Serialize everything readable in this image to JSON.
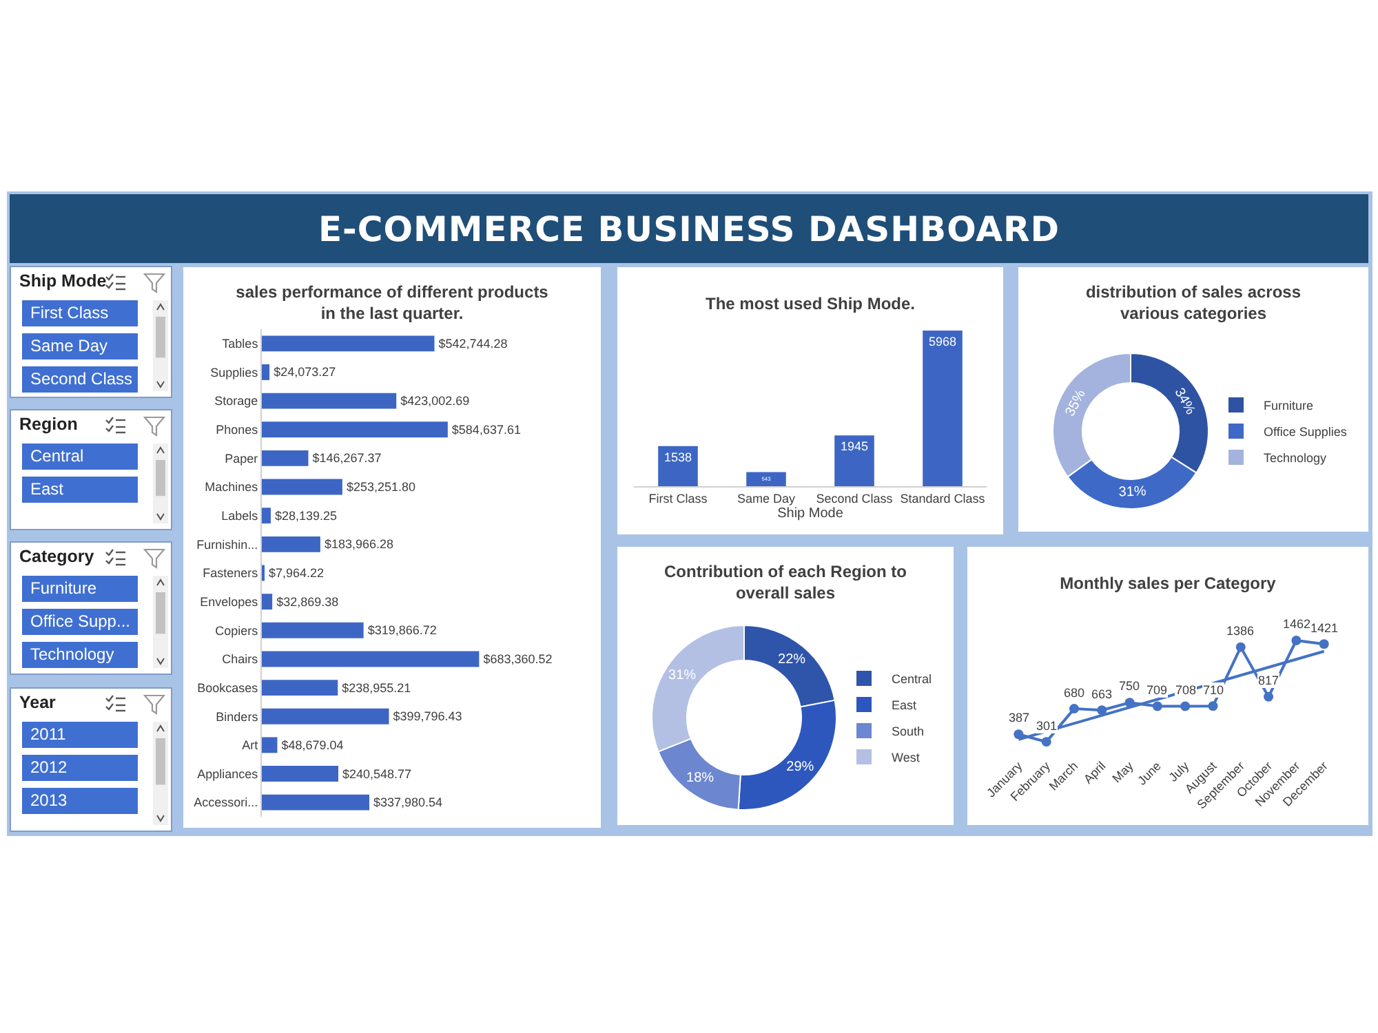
{
  "chart_data": [
    {
      "type": "other",
      "title": "E-COMMERCE BUSINESS DASHBOARD"
    },
    {
      "type": "other",
      "title": "Ship Mode",
      "categories": [
        "First Class",
        "Same Day",
        "Second Class"
      ]
    },
    {
      "type": "other",
      "title": "Region",
      "categories": [
        "Central",
        "East"
      ]
    },
    {
      "type": "other",
      "title": "Category",
      "categories": [
        "Furniture",
        "Office Supp...",
        "Technology"
      ]
    },
    {
      "type": "other",
      "title": "Year",
      "categories": [
        "2011",
        "2012",
        "2013"
      ]
    },
    {
      "type": "bar",
      "orientation": "horizontal",
      "title": "sales performance of different products in the last quarter.",
      "categories": [
        "Tables",
        "Supplies",
        "Storage",
        "Phones",
        "Paper",
        "Machines",
        "Labels",
        "Furnishin...",
        "Fasteners",
        "Envelopes",
        "Copiers",
        "Chairs",
        "Bookcases",
        "Binders",
        "Art",
        "Appliances",
        "Accessori..."
      ],
      "values": [
        542744.28,
        24073.27,
        423002.69,
        584637.61,
        146267.37,
        253251.8,
        28139.25,
        183966.28,
        7964.22,
        32869.38,
        319866.72,
        683360.52,
        238955.21,
        399796.43,
        48679.04,
        240548.77,
        337980.54
      ],
      "value_labels": [
        "$542,744.28",
        "$24,073.27",
        "$423,002.69",
        "$584,637.61",
        "$146,267.37",
        "$253,251.80",
        "$28,139.25",
        "$183,966.28",
        "$7,964.22",
        "$32,869.38",
        "$319,866.72",
        "$683,360.52",
        "$238,955.21",
        "$399,796.43",
        "$48,679.04",
        "$240,548.77",
        "$337,980.54"
      ],
      "color": "#3d66c4",
      "grid": false,
      "legend": false
    },
    {
      "type": "bar",
      "title": "The most used Ship Mode.",
      "xlabel": "Ship Mode",
      "categories": [
        "First Class",
        "Same Day",
        "Second Class",
        "Standard Class"
      ],
      "values": [
        1538,
        543,
        1945,
        5968
      ],
      "color": "#3d66c4",
      "data_labels": true,
      "grid": false,
      "legend": false
    },
    {
      "type": "donut",
      "title": "distribution of sales across various categories",
      "categories": [
        "Furniture",
        "Office Supplies",
        "Technology"
      ],
      "values": [
        34,
        31,
        35
      ],
      "value_labels": [
        "34%",
        "31%",
        "35%"
      ],
      "colors": [
        "#2f53a3",
        "#3e69c6",
        "#a3b3dd"
      ],
      "legend": "right"
    },
    {
      "type": "donut",
      "title": "Contribution of each Region to overall sales",
      "categories": [
        "Central",
        "East",
        "South",
        "West"
      ],
      "values": [
        22,
        29,
        18,
        31
      ],
      "value_labels": [
        "22%",
        "29%",
        "18%",
        "31%"
      ],
      "colors": [
        "#2f55aa",
        "#2d57bd",
        "#6c86cf",
        "#b3c0e4"
      ],
      "legend": "right"
    },
    {
      "type": "line",
      "title": "Monthly sales per Category",
      "categories": [
        "January",
        "February",
        "March",
        "April",
        "May",
        "June",
        "July",
        "August",
        "September",
        "October",
        "November",
        "December"
      ],
      "grid": false,
      "legend": false,
      "series": [
        {
          "color": "#4472c4",
          "marker": "circle",
          "values": [
            387,
            301,
            680,
            663,
            750,
            709,
            708,
            710,
            1386,
            817,
            1462,
            1421
          ],
          "value_labels": [
            "387",
            "301",
            "680",
            "663",
            "750",
            "709",
            "708",
            "710",
            "1386",
            "817",
            "1462",
            "1421"
          ]
        },
        {
          "type": "line",
          "color": "#4472c4",
          "x": [
            "January",
            "December"
          ],
          "values": [
            328,
            1338
          ]
        }
      ]
    }
  ]
}
